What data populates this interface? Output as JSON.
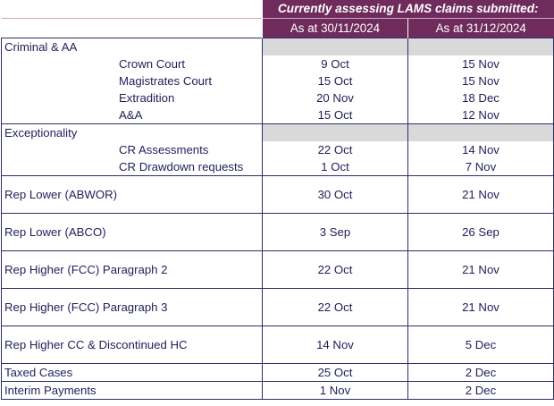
{
  "header": {
    "title": "Currently assessing LAMS claims submitted:",
    "col1": "As at 30/11/2024",
    "col2": "As at 31/12/2024"
  },
  "sections": [
    {
      "label": "Criminal & AA",
      "rows": [
        {
          "label": "Crown Court",
          "v1": "9 Oct",
          "v2": "15 Nov"
        },
        {
          "label": "Magistrates Court",
          "v1": "15 Oct",
          "v2": "15 Nov"
        },
        {
          "label": "Extradition",
          "v1": "20 Nov",
          "v2": "18 Dec"
        },
        {
          "label": "A&A",
          "v1": "15 Oct",
          "v2": "12 Nov"
        }
      ]
    },
    {
      "label": "Exceptionality",
      "rows": [
        {
          "label": "CR Assessments",
          "v1": "22 Oct",
          "v2": "14 Nov"
        },
        {
          "label": "CR Drawdown requests",
          "v1": "1 Oct",
          "v2": "7 Nov"
        }
      ]
    }
  ],
  "rows": [
    {
      "label": "Rep Lower (ABWOR)",
      "v1": "30 Oct",
      "v2": "21 Nov"
    },
    {
      "label": "Rep Lower (ABCO)",
      "v1": "3 Sep",
      "v2": "26 Sep"
    },
    {
      "label": "Rep Higher (FCC) Paragraph 2",
      "v1": "22 Oct",
      "v2": "21 Nov"
    },
    {
      "label": "Rep Higher (FCC) Paragraph 3",
      "v1": "22 Oct",
      "v2": "21 Nov"
    },
    {
      "label": "Rep Higher CC & Discontinued HC",
      "v1": "14 Nov",
      "v2": "5 Dec"
    },
    {
      "label": "Taxed Cases",
      "v1": "25 Oct",
      "v2": "2 Dec"
    },
    {
      "label": "Interim Payments",
      "v1": "1 Nov",
      "v2": "2 Dec"
    }
  ]
}
